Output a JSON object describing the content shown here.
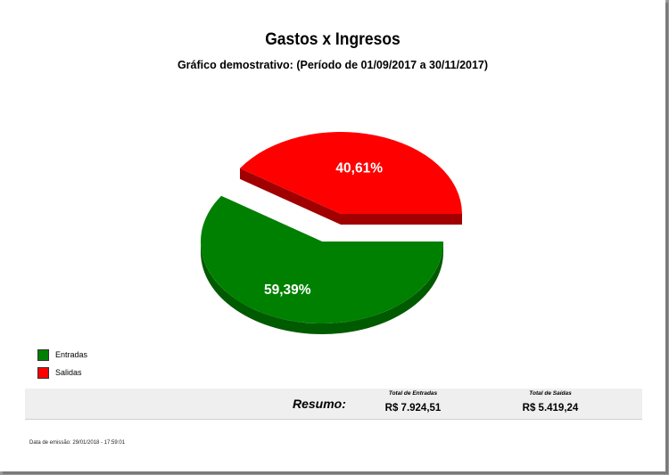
{
  "title": "Gastos x Ingresos",
  "subtitle": "Gráfico demostrativo: (Período de 01/09/2017 a 30/11/2017)",
  "chart_data": {
    "type": "pie",
    "title": "Gastos x Ingresos",
    "subtitle": "Gráfico demostrativo: (Período de 01/09/2017 a 30/11/2017)",
    "slices": [
      {
        "label": "Entradas",
        "value": 59.39,
        "display": "59,39%",
        "color": "#008000",
        "dark": "#005a00"
      },
      {
        "label": "Salidas",
        "value": 40.61,
        "display": "40,61%",
        "color": "#ff0000",
        "dark": "#a00000"
      }
    ],
    "legend_position": "bottom-left",
    "exploded": true
  },
  "legend": [
    {
      "label": "Entradas",
      "color": "#008000"
    },
    {
      "label": "Salidas",
      "color": "#ff0000"
    }
  ],
  "summary": {
    "label": "Resumo:",
    "entradas_header": "Total de Entradas",
    "entradas_value": "R$ 7.924,51",
    "saidas_header": "Total de Saídas",
    "saidas_value": "R$ 5.419,24"
  },
  "emission": "Data de emissão: 29/01/2018 - 17:59:01"
}
